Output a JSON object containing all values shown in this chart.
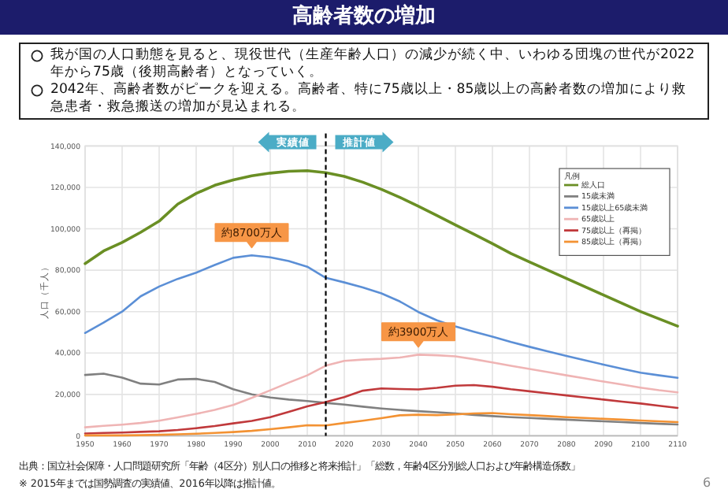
{
  "chart_data": {
    "type": "line",
    "title": "高齢者数の増加",
    "ylabel": "人口（千人）",
    "legend_title": "凡例",
    "x": [
      1950,
      1955,
      1960,
      1965,
      1970,
      1975,
      1980,
      1985,
      1990,
      1995,
      2000,
      2005,
      2010,
      2015,
      2020,
      2025,
      2030,
      2035,
      2040,
      2045,
      2050,
      2055,
      2060,
      2065,
      2070,
      2075,
      2080,
      2085,
      2090,
      2095,
      2100,
      2105,
      2110
    ],
    "series": [
      {
        "name": "総人口",
        "color": "#6a8f24",
        "values": [
          83200,
          89300,
          93400,
          98300,
          103700,
          111900,
          117100,
          121000,
          123600,
          125600,
          126900,
          127800,
          128100,
          127100,
          125300,
          122500,
          119100,
          115200,
          110900,
          106400,
          101900,
          97400,
          92800,
          88100,
          84000,
          80000,
          76000,
          72000,
          68000,
          64000,
          60000,
          56500,
          53000
        ]
      },
      {
        "name": "15歳未満",
        "color": "#808080",
        "values": [
          29400,
          30000,
          28100,
          25200,
          24800,
          27200,
          27500,
          26000,
          22500,
          20000,
          18500,
          17500,
          16800,
          15900,
          15100,
          14100,
          13200,
          12500,
          11900,
          11400,
          10800,
          10100,
          9500,
          9000,
          8600,
          8200,
          7800,
          7400,
          7000,
          6600,
          6200,
          5800,
          5500
        ]
      },
      {
        "name": "15歳以上65歳未満",
        "color": "#5b8fd6",
        "values": [
          49700,
          54700,
          60000,
          67400,
          72100,
          75800,
          78800,
          82500,
          86000,
          87200,
          86200,
          84400,
          81700,
          76300,
          74100,
          71700,
          68800,
          64900,
          59800,
          55800,
          52800,
          50300,
          47900,
          45300,
          43000,
          40800,
          38600,
          36500,
          34400,
          32400,
          30500,
          29200,
          28000
        ]
      },
      {
        "name": "65歳以上",
        "color": "#efb4b4",
        "values": [
          4100,
          4800,
          5400,
          6200,
          7300,
          8900,
          10600,
          12500,
          14900,
          18300,
          22000,
          25700,
          29200,
          33900,
          36200,
          36800,
          37200,
          37800,
          39200,
          38900,
          38400,
          37000,
          35400,
          33800,
          32300,
          30800,
          29200,
          27700,
          26200,
          24800,
          23300,
          22000,
          21000
        ]
      },
      {
        "name": "75歳以上（再掲）",
        "color": "#c0393b",
        "values": [
          1100,
          1400,
          1600,
          1900,
          2200,
          2800,
          3700,
          4700,
          6000,
          7200,
          9000,
          11600,
          14200,
          16300,
          18700,
          21800,
          22900,
          22600,
          22400,
          23200,
          24200,
          24500,
          23700,
          22500,
          21500,
          20500,
          19500,
          18500,
          17500,
          16500,
          15600,
          14500,
          13500
        ]
      },
      {
        "name": "85歳以上（再掲）",
        "color": "#f39233",
        "values": [
          200,
          200,
          200,
          300,
          500,
          700,
          1000,
          1400,
          1800,
          2400,
          3200,
          4100,
          5100,
          5000,
          6200,
          7300,
          8500,
          9900,
          10200,
          10000,
          10300,
          10800,
          11000,
          10400,
          10000,
          9500,
          9000,
          8600,
          8200,
          7800,
          7400,
          7000,
          6600
        ]
      }
    ],
    "xlim": [
      1950,
      2110
    ],
    "xticks": [
      1950,
      1960,
      1970,
      1980,
      1990,
      2000,
      2010,
      2020,
      2030,
      2040,
      2050,
      2060,
      2070,
      2080,
      2090,
      2100,
      2110
    ],
    "ylim": [
      0,
      140000
    ],
    "yticks": [
      {
        "value": 0,
        "label": "0"
      },
      {
        "value": 20000,
        "label": "20,000"
      },
      {
        "value": 40000,
        "label": "40,000"
      },
      {
        "value": 60000,
        "label": "60,000"
      },
      {
        "value": 80000,
        "label": "80,000"
      },
      {
        "value": 100000,
        "label": "100,000"
      },
      {
        "value": 120000,
        "label": "120,000"
      },
      {
        "value": 140000,
        "label": "140,000"
      }
    ],
    "grid": true,
    "legend": "top right",
    "ref_lines": [
      {
        "axis": "x",
        "value": 2015,
        "color": "#000000",
        "line_style": "dashed"
      }
    ],
    "annotations": [
      "我が国の人口動態を見ると、現役世代（生産年齢人口）の減少が続く中、いわゆる団塊の世代が2022年から75歳（後期高齢者）となっていく。",
      "2042年、高齢者数がピークを迎える。高齢者、特に75歳以上・85歳以上の高齢者数の増加により救急患者・救急搬送の増加が見込まれる。",
      "実績値",
      "推計値",
      "出典：国立社会保障・人口問題研究所「年齢（4区分）別人口の推移と将来推計」「総数，年齢4区分別総人口および年齢構造係数」",
      "※ 2015年までは国勢調査の実績値、2016年以降は推計値。",
      "6",
      {
        "text": "約8700万人",
        "x": 1995,
        "y": 87200
      },
      {
        "text": "約3900万人",
        "x": 2040,
        "y": 39200
      }
    ]
  }
}
